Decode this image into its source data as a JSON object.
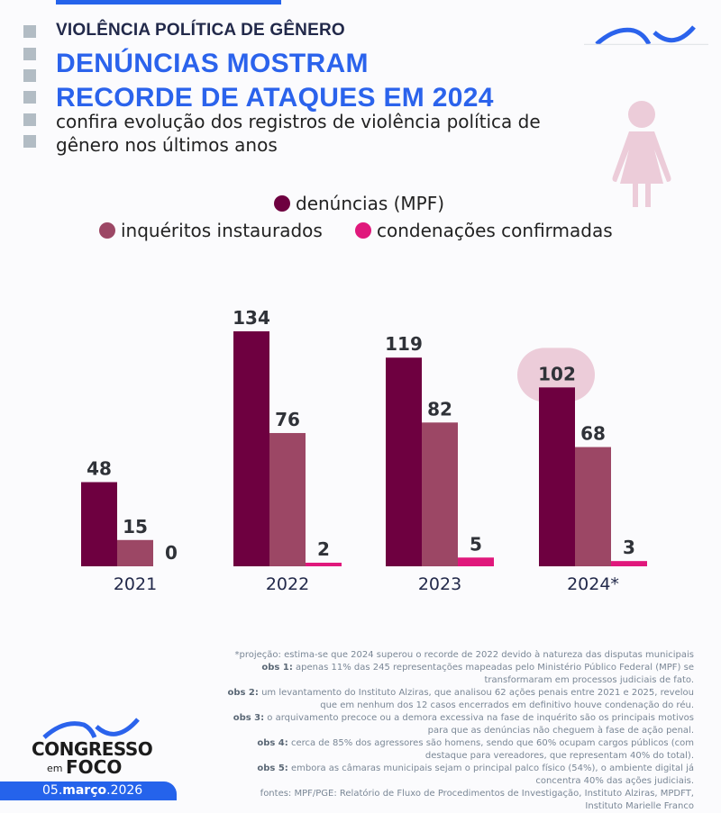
{
  "header": {
    "kicker": "VIOLÊNCIA POLÍTICA DE GÊNERO",
    "title_line1": "DENÚNCIAS MOSTRAM",
    "title_line2": "RECORDE DE ATAQUES EM 2024",
    "subtitle": "confira evolução dos registros de violência política de gênero nos últimos anos"
  },
  "chart_data": {
    "type": "bar",
    "categories": [
      "2021",
      "2022",
      "2023",
      "2024*"
    ],
    "series": [
      {
        "name": "denúncias (MPF)",
        "color": "#6e0040",
        "values": [
          48,
          134,
          119,
          102
        ]
      },
      {
        "name": "inquéritos instaurados",
        "color": "#9c4765",
        "values": [
          15,
          76,
          82,
          68
        ]
      },
      {
        "name": "condenações confirmadas",
        "color": "#e0187c",
        "values": [
          0,
          2,
          5,
          3
        ]
      }
    ],
    "highlight": {
      "series": 0,
      "category": "2024*",
      "color": "#ecccd9"
    },
    "ylim": [
      0,
      134
    ],
    "grid": false,
    "legend": "top"
  },
  "notes": {
    "projection": "*projeção: estima-se que 2024 superou o recorde de 2022 devido à natureza das disputas municipais",
    "items": [
      {
        "label": "obs 1:",
        "text": " apenas 11% das 245 representações mapeadas pelo Ministério Público Federal (MPF) se transformaram em processos judiciais de fato."
      },
      {
        "label": "obs 2:",
        "text": " um levantamento do Instituto Alziras, que analisou 62 ações penais entre 2021 e 2025, revelou que em nenhum dos 12 casos encerrados em definitivo houve condenação do réu."
      },
      {
        "label": "obs 3:",
        "text": " o arquivamento precoce ou a demora excessiva na fase de inquérito são os principais motivos para que as denúncias não cheguem à fase de ação penal."
      },
      {
        "label": "obs 4:",
        "text": " cerca de 85% dos agressores são homens, sendo que 60% ocupam cargos públicos (com destaque para vereadores, que representam 40% do total)."
      },
      {
        "label": "obs 5:",
        "text": " embora as câmaras municipais sejam o principal palco físico (54%), o ambiente digital já concentra 40% das ações judiciais."
      }
    ],
    "sources": "fontes: MPF/PGE: Relatório de Fluxo de Procedimentos de Investigação, Instituto Alziras, MPDFT, Instituto Marielle Franco"
  },
  "brand": {
    "logo_text": "CONGRESSO em FOCO",
    "date_day": "05.",
    "date_month": "março",
    "date_year": ".2026"
  },
  "colors": {
    "brand_blue": "#2563eb",
    "title_blue": "#2b63ec",
    "figure_pink": "#ecccd9"
  },
  "icons": {
    "figure": "woman-icon"
  }
}
